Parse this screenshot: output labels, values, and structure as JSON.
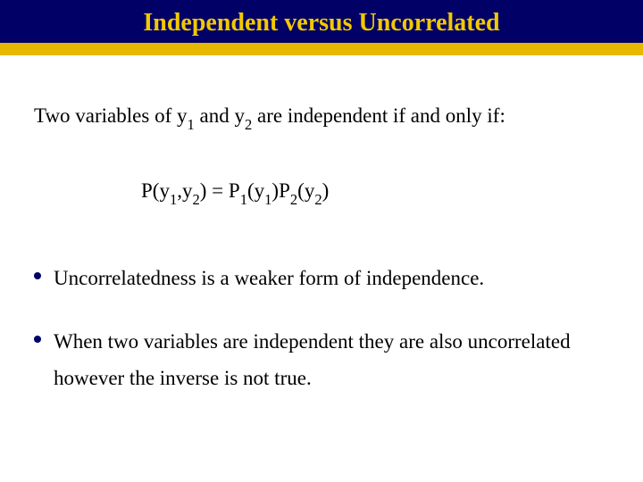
{
  "colors": {
    "header_bg": "#000066",
    "title_color": "#f2c800",
    "stripe_color": "#e6b800",
    "bullet_color": "#000066",
    "text_color": "#000000",
    "page_bg": "#ffffff"
  },
  "typography": {
    "title_fontsize": 28,
    "body_fontsize": 23,
    "font_family": "Times New Roman"
  },
  "title": "Independent versus Uncorrelated",
  "intro": {
    "pre": "Two variables of y",
    "s1": "1",
    "mid1": " and y",
    "s2": "2",
    "post": " are independent if and only if:"
  },
  "equation": {
    "t1": "P(y",
    "s1": "1",
    "t2": ",y",
    "s2": "2",
    "t3": ") = P",
    "s3": "1",
    "t4": "(y",
    "s4": "1",
    "t5": ")P",
    "s5": "2",
    "t6": "(y",
    "s6": "2",
    "t7": ")"
  },
  "bullets": {
    "b1": "Uncorrelatedness is a weaker form of independence.",
    "b2": "When two variables are independent they are also uncorrelated however the inverse is not true."
  }
}
